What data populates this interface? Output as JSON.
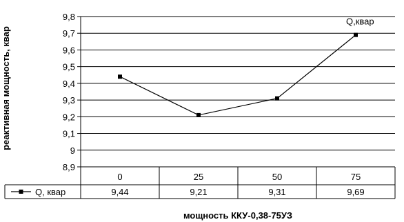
{
  "chart_data": {
    "type": "line",
    "title": "",
    "ylabel": "реактивная мощность, квар",
    "xlabel": "мощность ККУ-0,38-75УЗ",
    "categories": [
      "0",
      "25",
      "50",
      "75"
    ],
    "ylim": [
      8.9,
      9.8
    ],
    "yticks": [
      "8,9",
      "9",
      "9,1",
      "9,2",
      "9,3",
      "9,4",
      "9,5",
      "9,6",
      "9,7",
      "9,8"
    ],
    "grid": true,
    "series": [
      {
        "name": "Q, квар",
        "values": [
          9.44,
          9.21,
          9.31,
          9.69
        ],
        "value_labels": [
          "9,44",
          "9,21",
          "9,31",
          "9,69"
        ],
        "end_label": "Q,квар",
        "color": "#000000",
        "marker": "square"
      }
    ]
  }
}
